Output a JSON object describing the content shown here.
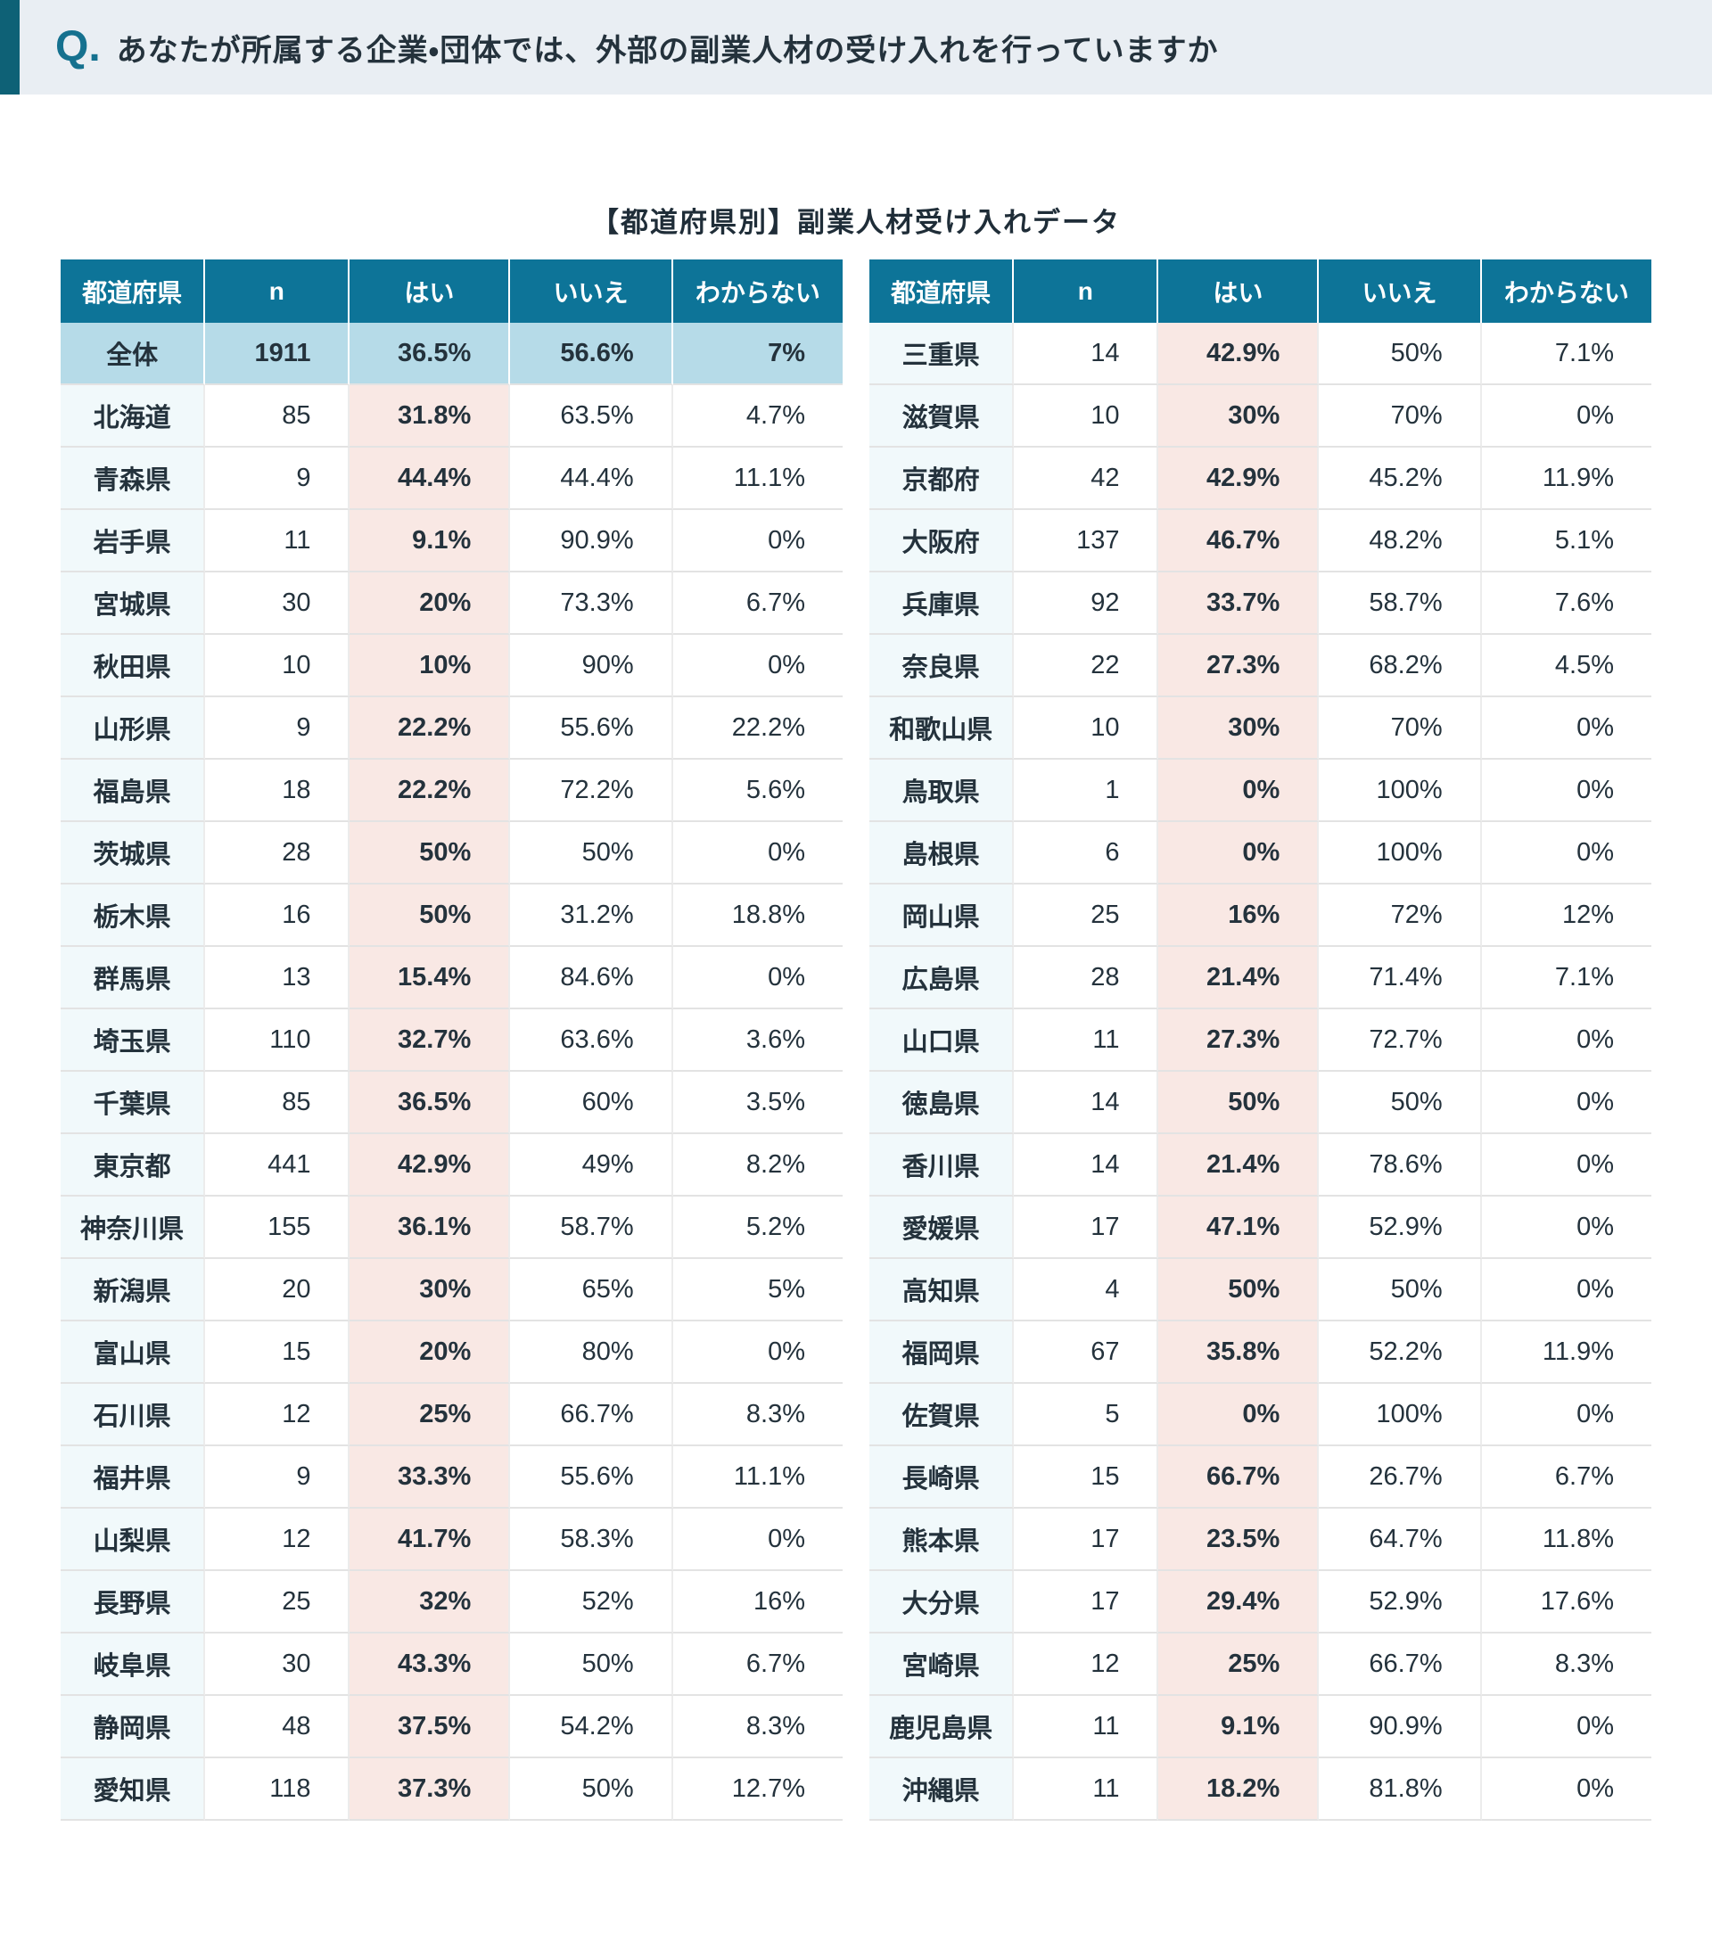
{
  "header": {
    "q_label": "Q.",
    "question": "あなたが所属する企業・団体では、外部の副業人材の受け入れを行っていますか"
  },
  "title": "【都道府県別】副業人材受け入れデータ",
  "colors": {
    "accent_bar": "#0e6176",
    "q_mark": "#15718f",
    "header_band_bg": "#e9eef3",
    "table_header_bg": "#0d7498",
    "summary_row_bg": "#b6dbe8",
    "yes_column_bg": "#f9e8e4",
    "prefecture_column_bg": "#f1f9fb",
    "text": "#24323c"
  },
  "chart_data": {
    "type": "table",
    "title": "【都道府県別】副業人材受け入れデータ",
    "columns": [
      "都道府県",
      "n",
      "はい",
      "いいえ",
      "わからない"
    ],
    "left_table": {
      "rows": [
        {
          "pref": "全体",
          "n": "1911",
          "yes": "36.5%",
          "no": "56.6%",
          "dk": "7%",
          "is_summary": true
        },
        {
          "pref": "北海道",
          "n": "85",
          "yes": "31.8%",
          "no": "63.5%",
          "dk": "4.7%"
        },
        {
          "pref": "青森県",
          "n": "9",
          "yes": "44.4%",
          "no": "44.4%",
          "dk": "11.1%"
        },
        {
          "pref": "岩手県",
          "n": "11",
          "yes": "9.1%",
          "no": "90.9%",
          "dk": "0%"
        },
        {
          "pref": "宮城県",
          "n": "30",
          "yes": "20%",
          "no": "73.3%",
          "dk": "6.7%"
        },
        {
          "pref": "秋田県",
          "n": "10",
          "yes": "10%",
          "no": "90%",
          "dk": "0%"
        },
        {
          "pref": "山形県",
          "n": "9",
          "yes": "22.2%",
          "no": "55.6%",
          "dk": "22.2%"
        },
        {
          "pref": "福島県",
          "n": "18",
          "yes": "22.2%",
          "no": "72.2%",
          "dk": "5.6%"
        },
        {
          "pref": "茨城県",
          "n": "28",
          "yes": "50%",
          "no": "50%",
          "dk": "0%"
        },
        {
          "pref": "栃木県",
          "n": "16",
          "yes": "50%",
          "no": "31.2%",
          "dk": "18.8%"
        },
        {
          "pref": "群馬県",
          "n": "13",
          "yes": "15.4%",
          "no": "84.6%",
          "dk": "0%"
        },
        {
          "pref": "埼玉県",
          "n": "110",
          "yes": "32.7%",
          "no": "63.6%",
          "dk": "3.6%"
        },
        {
          "pref": "千葉県",
          "n": "85",
          "yes": "36.5%",
          "no": "60%",
          "dk": "3.5%"
        },
        {
          "pref": "東京都",
          "n": "441",
          "yes": "42.9%",
          "no": "49%",
          "dk": "8.2%"
        },
        {
          "pref": "神奈川県",
          "n": "155",
          "yes": "36.1%",
          "no": "58.7%",
          "dk": "5.2%"
        },
        {
          "pref": "新潟県",
          "n": "20",
          "yes": "30%",
          "no": "65%",
          "dk": "5%"
        },
        {
          "pref": "富山県",
          "n": "15",
          "yes": "20%",
          "no": "80%",
          "dk": "0%"
        },
        {
          "pref": "石川県",
          "n": "12",
          "yes": "25%",
          "no": "66.7%",
          "dk": "8.3%"
        },
        {
          "pref": "福井県",
          "n": "9",
          "yes": "33.3%",
          "no": "55.6%",
          "dk": "11.1%"
        },
        {
          "pref": "山梨県",
          "n": "12",
          "yes": "41.7%",
          "no": "58.3%",
          "dk": "0%"
        },
        {
          "pref": "長野県",
          "n": "25",
          "yes": "32%",
          "no": "52%",
          "dk": "16%"
        },
        {
          "pref": "岐阜県",
          "n": "30",
          "yes": "43.3%",
          "no": "50%",
          "dk": "6.7%"
        },
        {
          "pref": "静岡県",
          "n": "48",
          "yes": "37.5%",
          "no": "54.2%",
          "dk": "8.3%"
        },
        {
          "pref": "愛知県",
          "n": "118",
          "yes": "37.3%",
          "no": "50%",
          "dk": "12.7%"
        }
      ]
    },
    "right_table": {
      "rows": [
        {
          "pref": "三重県",
          "n": "14",
          "yes": "42.9%",
          "no": "50%",
          "dk": "7.1%"
        },
        {
          "pref": "滋賀県",
          "n": "10",
          "yes": "30%",
          "no": "70%",
          "dk": "0%"
        },
        {
          "pref": "京都府",
          "n": "42",
          "yes": "42.9%",
          "no": "45.2%",
          "dk": "11.9%"
        },
        {
          "pref": "大阪府",
          "n": "137",
          "yes": "46.7%",
          "no": "48.2%",
          "dk": "5.1%"
        },
        {
          "pref": "兵庫県",
          "n": "92",
          "yes": "33.7%",
          "no": "58.7%",
          "dk": "7.6%"
        },
        {
          "pref": "奈良県",
          "n": "22",
          "yes": "27.3%",
          "no": "68.2%",
          "dk": "4.5%"
        },
        {
          "pref": "和歌山県",
          "n": "10",
          "yes": "30%",
          "no": "70%",
          "dk": "0%"
        },
        {
          "pref": "鳥取県",
          "n": "1",
          "yes": "0%",
          "no": "100%",
          "dk": "0%"
        },
        {
          "pref": "島根県",
          "n": "6",
          "yes": "0%",
          "no": "100%",
          "dk": "0%"
        },
        {
          "pref": "岡山県",
          "n": "25",
          "yes": "16%",
          "no": "72%",
          "dk": "12%"
        },
        {
          "pref": "広島県",
          "n": "28",
          "yes": "21.4%",
          "no": "71.4%",
          "dk": "7.1%"
        },
        {
          "pref": "山口県",
          "n": "11",
          "yes": "27.3%",
          "no": "72.7%",
          "dk": "0%"
        },
        {
          "pref": "徳島県",
          "n": "14",
          "yes": "50%",
          "no": "50%",
          "dk": "0%"
        },
        {
          "pref": "香川県",
          "n": "14",
          "yes": "21.4%",
          "no": "78.6%",
          "dk": "0%"
        },
        {
          "pref": "愛媛県",
          "n": "17",
          "yes": "47.1%",
          "no": "52.9%",
          "dk": "0%"
        },
        {
          "pref": "高知県",
          "n": "4",
          "yes": "50%",
          "no": "50%",
          "dk": "0%"
        },
        {
          "pref": "福岡県",
          "n": "67",
          "yes": "35.8%",
          "no": "52.2%",
          "dk": "11.9%"
        },
        {
          "pref": "佐賀県",
          "n": "5",
          "yes": "0%",
          "no": "100%",
          "dk": "0%"
        },
        {
          "pref": "長崎県",
          "n": "15",
          "yes": "66.7%",
          "no": "26.7%",
          "dk": "6.7%"
        },
        {
          "pref": "熊本県",
          "n": "17",
          "yes": "23.5%",
          "no": "64.7%",
          "dk": "11.8%"
        },
        {
          "pref": "大分県",
          "n": "17",
          "yes": "29.4%",
          "no": "52.9%",
          "dk": "17.6%"
        },
        {
          "pref": "宮崎県",
          "n": "12",
          "yes": "25%",
          "no": "66.7%",
          "dk": "8.3%"
        },
        {
          "pref": "鹿児島県",
          "n": "11",
          "yes": "9.1%",
          "no": "90.9%",
          "dk": "0%"
        },
        {
          "pref": "沖縄県",
          "n": "11",
          "yes": "18.2%",
          "no": "81.8%",
          "dk": "0%"
        }
      ]
    }
  }
}
